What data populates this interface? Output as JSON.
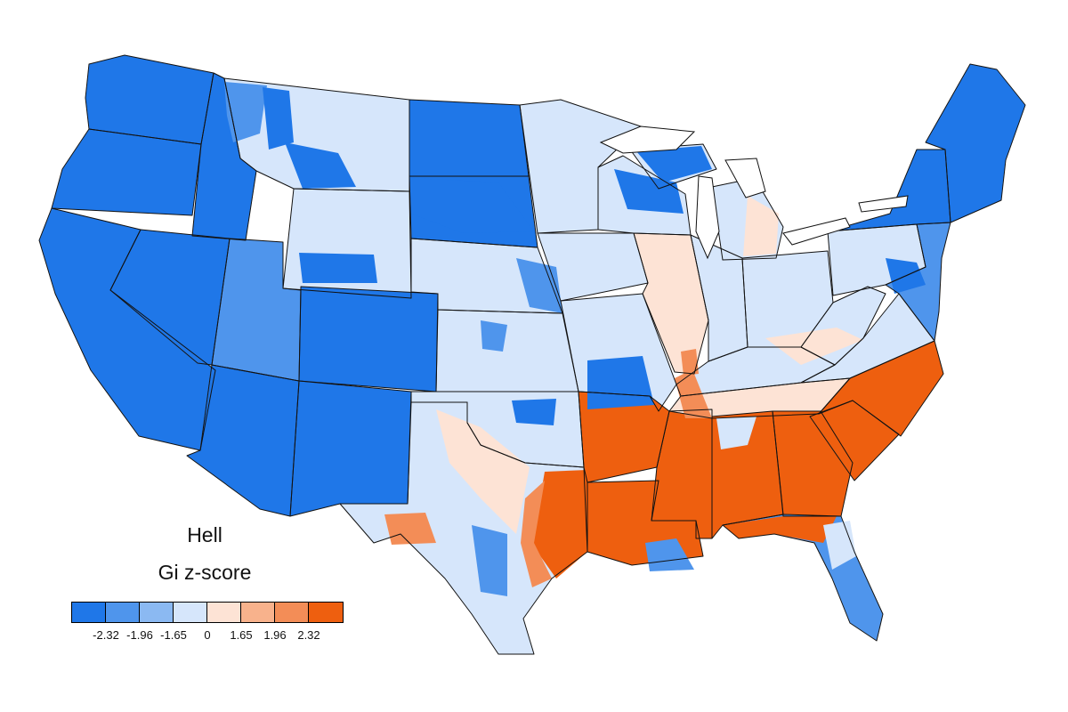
{
  "map": {
    "title": "Hell",
    "legend_title": "Gi z-score",
    "legend": {
      "colors": [
        "#1f77e8",
        "#4f95ec",
        "#8bb9f2",
        "#d6e6fb",
        "#fde3d5",
        "#f8b28c",
        "#f38d57",
        "#ee5f0f"
      ],
      "ticks": [
        "-2.32",
        "-1.96",
        "-1.65",
        "0",
        "1.65",
        "1.96",
        "2.32"
      ]
    },
    "level_colors": {
      "very_low": "#1f77e8",
      "low": "#4f95ec",
      "mid_low": "#8bb9f2",
      "neutral_low": "#d6e6fb",
      "neutral_high": "#fde3d5",
      "mid_high": "#f8b28c",
      "high": "#f38d57",
      "very_high": "#ee5f0f"
    },
    "states": [
      {
        "name": "Washington",
        "level": "very_low"
      },
      {
        "name": "Oregon",
        "level": "very_low"
      },
      {
        "name": "California",
        "level": "very_low"
      },
      {
        "name": "Nevada",
        "level": "very_low"
      },
      {
        "name": "Idaho",
        "level": "very_low"
      },
      {
        "name": "Montana",
        "level": "neutral_low"
      },
      {
        "name": "Wyoming",
        "level": "neutral_low"
      },
      {
        "name": "Utah",
        "level": "low"
      },
      {
        "name": "Arizona",
        "level": "very_low"
      },
      {
        "name": "Colorado",
        "level": "very_low"
      },
      {
        "name": "New Mexico",
        "level": "very_low"
      },
      {
        "name": "North Dakota",
        "level": "very_low"
      },
      {
        "name": "South Dakota",
        "level": "very_low"
      },
      {
        "name": "Nebraska",
        "level": "neutral_low"
      },
      {
        "name": "Kansas",
        "level": "neutral_low"
      },
      {
        "name": "Oklahoma",
        "level": "neutral_low"
      },
      {
        "name": "Texas",
        "level": "neutral_low"
      },
      {
        "name": "Minnesota",
        "level": "neutral_low"
      },
      {
        "name": "Iowa",
        "level": "neutral_low"
      },
      {
        "name": "Missouri",
        "level": "neutral_low"
      },
      {
        "name": "Arkansas",
        "level": "very_high"
      },
      {
        "name": "Louisiana",
        "level": "very_high"
      },
      {
        "name": "Wisconsin",
        "level": "neutral_low"
      },
      {
        "name": "Illinois",
        "level": "neutral_high"
      },
      {
        "name": "Michigan",
        "level": "neutral_low"
      },
      {
        "name": "Indiana",
        "level": "neutral_low"
      },
      {
        "name": "Ohio",
        "level": "neutral_low"
      },
      {
        "name": "Kentucky",
        "level": "neutral_low"
      },
      {
        "name": "Tennessee",
        "level": "neutral_high"
      },
      {
        "name": "Mississippi",
        "level": "very_high"
      },
      {
        "name": "Alabama",
        "level": "very_high"
      },
      {
        "name": "Georgia",
        "level": "very_high"
      },
      {
        "name": "Florida",
        "level": "low"
      },
      {
        "name": "South Carolina",
        "level": "very_high"
      },
      {
        "name": "North Carolina",
        "level": "very_high"
      },
      {
        "name": "Virginia",
        "level": "neutral_low"
      },
      {
        "name": "West Virginia",
        "level": "neutral_low"
      },
      {
        "name": "Pennsylvania",
        "level": "neutral_low"
      },
      {
        "name": "New York",
        "level": "very_low"
      },
      {
        "name": "New England",
        "level": "very_low"
      },
      {
        "name": "Mid-Atlantic",
        "level": "low"
      }
    ],
    "patches": [
      {
        "name": "idaho-panhandle-patch",
        "level": "low"
      },
      {
        "name": "nw-montana-patch",
        "level": "very_low"
      },
      {
        "name": "montana-east-patch",
        "level": "very_low"
      },
      {
        "name": "sw-wyoming-patch",
        "level": "very_low"
      },
      {
        "name": "nebraska-panhandle-patch",
        "level": "very_low"
      },
      {
        "name": "nebraska-east-patch",
        "level": "low"
      },
      {
        "name": "kansas-west-patch",
        "level": "low"
      },
      {
        "name": "missouri-south-patch",
        "level": "very_low"
      },
      {
        "name": "wisconsin-north-patch",
        "level": "very_low"
      },
      {
        "name": "michigan-up-patch",
        "level": "very_low"
      },
      {
        "name": "michigan-lower-patch",
        "level": "neutral_high"
      },
      {
        "name": "virginia-south-patch",
        "level": "neutral_high"
      },
      {
        "name": "texas-east-core-patch",
        "level": "very_high"
      },
      {
        "name": "texas-east-edge-patch",
        "level": "high"
      },
      {
        "name": "texas-central-patch",
        "level": "neutral_high"
      },
      {
        "name": "texas-west-patch",
        "level": "high"
      },
      {
        "name": "texas-south-patch",
        "level": "low"
      },
      {
        "name": "oklahoma-north-patch",
        "level": "very_low"
      },
      {
        "name": "louisiana-south-patch",
        "level": "low"
      },
      {
        "name": "alabama-north-patch",
        "level": "neutral_low"
      },
      {
        "name": "tennessee-west-patch",
        "level": "high"
      },
      {
        "name": "florida-panhandle-patch",
        "level": "very_high"
      },
      {
        "name": "florida-north-patch",
        "level": "neutral_low"
      },
      {
        "name": "illinois-south-patch",
        "level": "high"
      },
      {
        "name": "maryland-patch",
        "level": "very_low"
      }
    ]
  }
}
